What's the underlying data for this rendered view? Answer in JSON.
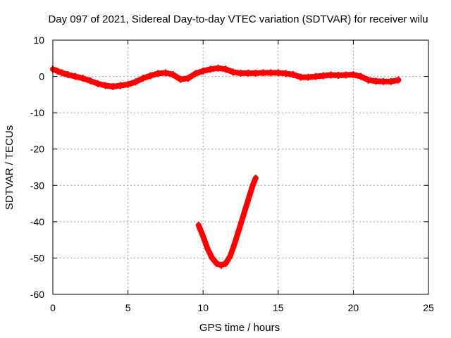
{
  "chart_data": {
    "type": "scatter",
    "title": "Day 097 of 2021, Sidereal Day-to-day VTEC variation (SDTVAR) for receiver wilu",
    "xlabel": "GPS time / hours",
    "ylabel": "SDTVAR / TECUs",
    "xlim": [
      0,
      25
    ],
    "ylim": [
      -60,
      10
    ],
    "xticks": [
      0,
      5,
      10,
      15,
      20,
      25
    ],
    "yticks": [
      10,
      0,
      -10,
      -20,
      -30,
      -40,
      -50,
      -60
    ],
    "grid": true,
    "color": "#ff0000",
    "series": [
      {
        "name": "main",
        "x": [
          0,
          0.3,
          0.6,
          1.0,
          1.5,
          2.0,
          2.5,
          3.0,
          3.5,
          4.0,
          4.5,
          5.0,
          5.5,
          6.0,
          6.5,
          7.0,
          7.5,
          8.0,
          8.5,
          9.0,
          9.5,
          10.0,
          10.5,
          11.0,
          11.5,
          12.0,
          12.5,
          13.0,
          13.5,
          14.0,
          14.5,
          15.0,
          15.5,
          16.0,
          16.5,
          17.0,
          17.5,
          18.0,
          18.5,
          19.0,
          19.5,
          20.0,
          20.5,
          21.0,
          21.5,
          22.0,
          22.5,
          23.0
        ],
        "y": [
          2.0,
          1.5,
          1.0,
          0.5,
          0.0,
          -0.5,
          -1.2,
          -2.0,
          -2.5,
          -2.8,
          -2.5,
          -2.2,
          -1.5,
          -0.5,
          0.2,
          0.8,
          1.0,
          0.5,
          -0.8,
          -0.5,
          0.8,
          1.5,
          2.0,
          2.3,
          2.0,
          1.2,
          0.9,
          0.9,
          0.9,
          1.0,
          1.0,
          1.0,
          0.8,
          0.5,
          -0.2,
          -0.2,
          0.0,
          0.2,
          0.4,
          0.3,
          0.4,
          0.5,
          0.0,
          -1.0,
          -1.3,
          -1.4,
          -1.4,
          -1.0
        ]
      },
      {
        "name": "dip",
        "x": [
          9.7,
          10.0,
          10.3,
          10.6,
          10.9,
          11.2,
          11.5,
          11.8,
          12.1,
          12.4,
          12.7,
          13.0,
          13.3,
          13.5
        ],
        "y": [
          -41,
          -44,
          -47.5,
          -50,
          -51.5,
          -52,
          -51.5,
          -49.5,
          -46,
          -42,
          -38,
          -34,
          -30,
          -28
        ]
      }
    ]
  }
}
